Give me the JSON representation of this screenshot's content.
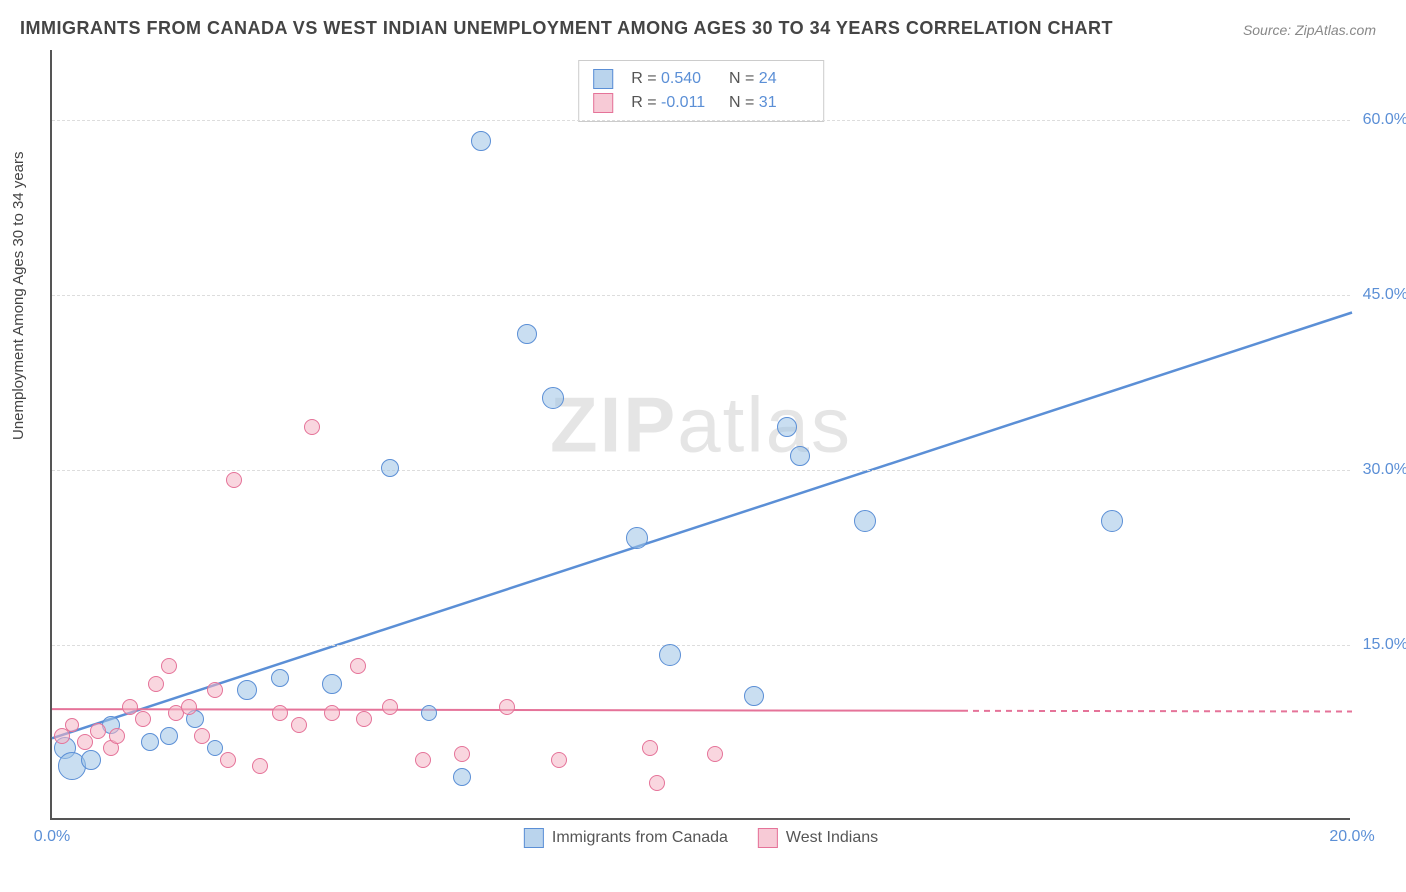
{
  "title": "IMMIGRANTS FROM CANADA VS WEST INDIAN UNEMPLOYMENT AMONG AGES 30 TO 34 YEARS CORRELATION CHART",
  "source": "Source: ZipAtlas.com",
  "ylabel": "Unemployment Among Ages 30 to 34 years",
  "watermark_bold": "ZIP",
  "watermark_rest": "atlas",
  "chart": {
    "type": "scatter",
    "xlim": [
      0,
      20
    ],
    "ylim": [
      0,
      66
    ],
    "x_ticks": [
      {
        "value": 0,
        "label": "0.0%"
      },
      {
        "value": 20,
        "label": "20.0%"
      }
    ],
    "y_ticks": [
      {
        "value": 15,
        "label": "15.0%"
      },
      {
        "value": 30,
        "label": "30.0%"
      },
      {
        "value": 45,
        "label": "45.0%"
      },
      {
        "value": 60,
        "label": "60.0%"
      }
    ],
    "background_color": "#ffffff",
    "grid_color": "#dddddd",
    "axis_color": "#555555",
    "series": [
      {
        "name": "Immigrants from Canada",
        "key": "canada",
        "color": "#5B8FD6",
        "fill": "rgba(156,194,230,0.55)",
        "R": "0.540",
        "N": "24",
        "points": [
          {
            "x": 0.2,
            "y": 6.0,
            "r": 11
          },
          {
            "x": 0.3,
            "y": 4.5,
            "r": 14
          },
          {
            "x": 0.6,
            "y": 5.0,
            "r": 10
          },
          {
            "x": 0.9,
            "y": 8.0,
            "r": 9
          },
          {
            "x": 1.5,
            "y": 6.5,
            "r": 9
          },
          {
            "x": 1.8,
            "y": 7.0,
            "r": 9
          },
          {
            "x": 2.2,
            "y": 8.5,
            "r": 9
          },
          {
            "x": 2.5,
            "y": 6.0,
            "r": 8
          },
          {
            "x": 3.0,
            "y": 11.0,
            "r": 10
          },
          {
            "x": 3.5,
            "y": 12.0,
            "r": 9
          },
          {
            "x": 4.3,
            "y": 11.5,
            "r": 10
          },
          {
            "x": 5.2,
            "y": 30.0,
            "r": 9
          },
          {
            "x": 5.8,
            "y": 9.0,
            "r": 8
          },
          {
            "x": 6.3,
            "y": 3.5,
            "r": 9
          },
          {
            "x": 6.6,
            "y": 58.0,
            "r": 10
          },
          {
            "x": 7.3,
            "y": 41.5,
            "r": 10
          },
          {
            "x": 7.7,
            "y": 36.0,
            "r": 11
          },
          {
            "x": 9.0,
            "y": 24.0,
            "r": 11
          },
          {
            "x": 9.5,
            "y": 14.0,
            "r": 11
          },
          {
            "x": 10.8,
            "y": 10.5,
            "r": 10
          },
          {
            "x": 11.3,
            "y": 33.5,
            "r": 10
          },
          {
            "x": 11.5,
            "y": 31.0,
            "r": 10
          },
          {
            "x": 12.5,
            "y": 25.5,
            "r": 11
          },
          {
            "x": 16.3,
            "y": 25.5,
            "r": 11
          }
        ],
        "trend": {
          "x1": 0,
          "y1": 7.0,
          "x2": 20,
          "y2": 43.5,
          "solid_until_x": 20,
          "line_width": 2.5
        }
      },
      {
        "name": "West Indians",
        "key": "west",
        "color": "#E57399",
        "fill": "rgba(244,180,196,0.55)",
        "R": "-0.011",
        "N": "31",
        "points": [
          {
            "x": 0.15,
            "y": 7.0,
            "r": 8
          },
          {
            "x": 0.3,
            "y": 8.0,
            "r": 7
          },
          {
            "x": 0.5,
            "y": 6.5,
            "r": 8
          },
          {
            "x": 0.7,
            "y": 7.5,
            "r": 8
          },
          {
            "x": 0.9,
            "y": 6.0,
            "r": 8
          },
          {
            "x": 1.0,
            "y": 7.0,
            "r": 8
          },
          {
            "x": 1.2,
            "y": 9.5,
            "r": 8
          },
          {
            "x": 1.4,
            "y": 8.5,
            "r": 8
          },
          {
            "x": 1.6,
            "y": 11.5,
            "r": 8
          },
          {
            "x": 1.8,
            "y": 13.0,
            "r": 8
          },
          {
            "x": 1.9,
            "y": 9.0,
            "r": 8
          },
          {
            "x": 2.1,
            "y": 9.5,
            "r": 8
          },
          {
            "x": 2.3,
            "y": 7.0,
            "r": 8
          },
          {
            "x": 2.5,
            "y": 11.0,
            "r": 8
          },
          {
            "x": 2.8,
            "y": 29.0,
            "r": 8
          },
          {
            "x": 2.7,
            "y": 5.0,
            "r": 8
          },
          {
            "x": 3.2,
            "y": 4.5,
            "r": 8
          },
          {
            "x": 3.5,
            "y": 9.0,
            "r": 8
          },
          {
            "x": 3.8,
            "y": 8.0,
            "r": 8
          },
          {
            "x": 4.0,
            "y": 33.5,
            "r": 8
          },
          {
            "x": 4.3,
            "y": 9.0,
            "r": 8
          },
          {
            "x": 4.7,
            "y": 13.0,
            "r": 8
          },
          {
            "x": 4.8,
            "y": 8.5,
            "r": 8
          },
          {
            "x": 5.2,
            "y": 9.5,
            "r": 8
          },
          {
            "x": 5.7,
            "y": 5.0,
            "r": 8
          },
          {
            "x": 6.3,
            "y": 5.5,
            "r": 8
          },
          {
            "x": 7.0,
            "y": 9.5,
            "r": 8
          },
          {
            "x": 7.8,
            "y": 5.0,
            "r": 8
          },
          {
            "x": 9.2,
            "y": 6.0,
            "r": 8
          },
          {
            "x": 9.3,
            "y": 3.0,
            "r": 8
          },
          {
            "x": 10.2,
            "y": 5.5,
            "r": 8
          }
        ],
        "trend": {
          "x1": 0,
          "y1": 9.5,
          "x2": 20,
          "y2": 9.3,
          "solid_until_x": 14,
          "line_width": 2
        }
      }
    ],
    "stats_legend_title_R": "R =",
    "stats_legend_title_N": "N ="
  }
}
